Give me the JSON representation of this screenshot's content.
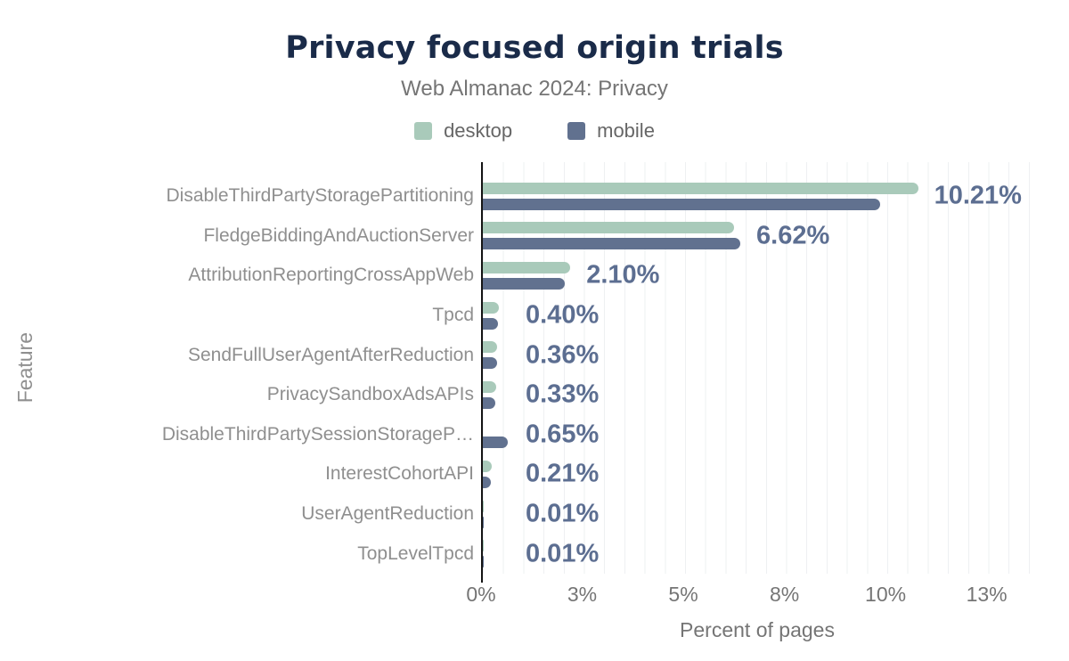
{
  "header": {
    "title": "Privacy focused origin trials",
    "subtitle": "Web Almanac 2024: Privacy"
  },
  "colors": {
    "desktop_bar": "#a9caba",
    "mobile_bar": "#61718f",
    "value_label": "#5c6e91",
    "title": "#1a2b49",
    "axis": "#141414",
    "gridline": "#eef0f2",
    "muted_text": "#757575",
    "category_text": "#8f8f8f"
  },
  "chart_data": {
    "type": "bar",
    "orientation": "horizontal",
    "title": "Privacy focused origin trials",
    "subtitle": "Web Almanac 2024: Privacy",
    "xlabel": "Percent of pages",
    "ylabel": "Feature",
    "xlim": [
      0,
      14.2
    ],
    "grid": "minor-vertical",
    "legend_position": "top",
    "categories": [
      "DisableThirdPartyStoragePartitioning",
      "FledgeBiddingAndAuctionServer",
      "AttributionReportingCrossAppWeb",
      "Tpcd",
      "SendFullUserAgentAfterReduction",
      "PrivacySandboxAdsAPIs",
      "DisableThirdPartySessionStorageP…",
      "InterestCohortAPI",
      "UserAgentReduction",
      "TopLevelTpcd"
    ],
    "series": [
      {
        "name": "desktop",
        "color": "#a9caba",
        "values": [
          11.19,
          6.45,
          2.25,
          0.41,
          0.37,
          0.34,
          0.0,
          0.24,
          0.01,
          0.01
        ]
      },
      {
        "name": "mobile",
        "color": "#61718f",
        "values": [
          10.21,
          6.62,
          2.1,
          0.4,
          0.36,
          0.33,
          0.65,
          0.21,
          0.01,
          0.01
        ]
      }
    ],
    "value_labels": [
      "10.21%",
      "6.62%",
      "2.10%",
      "0.40%",
      "0.36%",
      "0.33%",
      "0.65%",
      "0.21%",
      "0.01%",
      "0.01%"
    ],
    "x_ticks": [
      {
        "value": 0,
        "label": "0%"
      },
      {
        "value": 2.6,
        "label": "3%"
      },
      {
        "value": 5.2,
        "label": "5%"
      },
      {
        "value": 7.8,
        "label": "8%"
      },
      {
        "value": 10.4,
        "label": "10%"
      },
      {
        "value": 13,
        "label": "13%"
      }
    ]
  }
}
